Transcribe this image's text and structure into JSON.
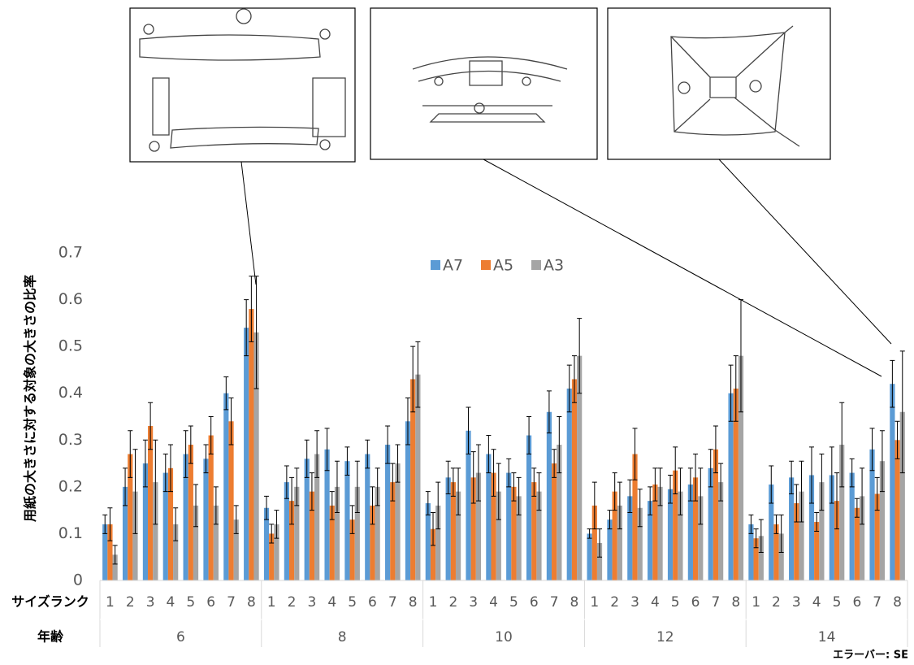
{
  "chart_data": {
    "type": "bar",
    "y_label": "用紙の大きさに対する対象の大きさの比率",
    "x_label": "サイズランク",
    "group_label": "年齢",
    "note": "エラーバー: SE",
    "groups": [
      "6",
      "8",
      "10",
      "12",
      "14"
    ],
    "categories": [
      "1",
      "2",
      "3",
      "4",
      "5",
      "6",
      "7",
      "8",
      "1",
      "2",
      "3",
      "4",
      "5",
      "6",
      "7",
      "8",
      "1",
      "2",
      "3",
      "4",
      "5",
      "6",
      "7",
      "8",
      "1",
      "2",
      "3",
      "4",
      "5",
      "6",
      "7",
      "8",
      "1",
      "2",
      "3",
      "4",
      "5",
      "6",
      "7",
      "8"
    ],
    "series": [
      {
        "name": "A7",
        "color": "#5b9bd5",
        "values": [
          0.12,
          0.2,
          0.25,
          0.23,
          0.27,
          0.26,
          0.4,
          0.54,
          0.155,
          0.21,
          0.26,
          0.28,
          0.255,
          0.27,
          0.29,
          0.34,
          0.165,
          0.22,
          0.32,
          0.27,
          0.23,
          0.31,
          0.36,
          0.41,
          0.1,
          0.13,
          0.18,
          0.17,
          0.195,
          0.205,
          0.24,
          0.4,
          0.12,
          0.205,
          0.22,
          0.225,
          0.225,
          0.23,
          0.28,
          0.42
        ],
        "errors": [
          0.02,
          0.04,
          0.05,
          0.04,
          0.05,
          0.03,
          0.035,
          0.06,
          0.025,
          0.035,
          0.04,
          0.045,
          0.03,
          0.03,
          0.04,
          0.05,
          0.025,
          0.035,
          0.05,
          0.04,
          0.03,
          0.04,
          0.045,
          0.05,
          0.01,
          0.02,
          0.035,
          0.03,
          0.03,
          0.035,
          0.04,
          0.06,
          0.02,
          0.04,
          0.035,
          0.06,
          0.06,
          0.03,
          0.045,
          0.05
        ]
      },
      {
        "name": "A5",
        "color": "#ed7d31",
        "values": [
          0.12,
          0.27,
          0.33,
          0.24,
          0.29,
          0.31,
          0.34,
          0.58,
          0.1,
          0.17,
          0.19,
          0.16,
          0.13,
          0.16,
          0.21,
          0.43,
          0.11,
          0.21,
          0.22,
          0.23,
          0.2,
          0.21,
          0.25,
          0.43,
          0.16,
          0.19,
          0.27,
          0.205,
          0.235,
          0.22,
          0.28,
          0.41,
          0.09,
          0.12,
          0.165,
          0.125,
          0.17,
          0.155,
          0.185,
          0.3
        ],
        "errors": [
          0.035,
          0.05,
          0.05,
          0.05,
          0.04,
          0.04,
          0.05,
          0.07,
          0.02,
          0.05,
          0.04,
          0.03,
          0.03,
          0.04,
          0.04,
          0.07,
          0.035,
          0.03,
          0.055,
          0.05,
          0.03,
          0.03,
          0.03,
          0.05,
          0.05,
          0.04,
          0.055,
          0.035,
          0.05,
          0.05,
          0.05,
          0.07,
          0.02,
          0.02,
          0.04,
          0.02,
          0.06,
          0.02,
          0.035,
          0.04
        ]
      },
      {
        "name": "A3",
        "color": "#a5a5a5",
        "values": [
          0.055,
          0.19,
          0.21,
          0.12,
          0.16,
          0.16,
          0.13,
          0.53,
          0.12,
          0.2,
          0.27,
          0.2,
          0.2,
          0.2,
          0.25,
          0.44,
          0.16,
          0.19,
          0.23,
          0.19,
          0.18,
          0.19,
          0.29,
          0.48,
          0.08,
          0.16,
          0.155,
          0.2,
          0.19,
          0.18,
          0.21,
          0.48,
          0.095,
          0.1,
          0.19,
          0.21,
          0.29,
          0.18,
          0.255,
          0.36
        ],
        "errors": [
          0.02,
          0.09,
          0.09,
          0.035,
          0.045,
          0.04,
          0.03,
          0.12,
          0.03,
          0.04,
          0.05,
          0.055,
          0.055,
          0.04,
          0.04,
          0.07,
          0.05,
          0.05,
          0.06,
          0.06,
          0.04,
          0.04,
          0.06,
          0.08,
          0.03,
          0.05,
          0.04,
          0.04,
          0.05,
          0.06,
          0.04,
          0.12,
          0.035,
          0.04,
          0.065,
          0.06,
          0.09,
          0.06,
          0.065,
          0.13
        ]
      }
    ],
    "ylim": [
      0,
      0.7
    ],
    "yticks": [
      0,
      0.1,
      0.2,
      0.3,
      0.4,
      0.5,
      0.6,
      0.7
    ],
    "grid": false,
    "legend": "top",
    "error_bars": true
  }
}
